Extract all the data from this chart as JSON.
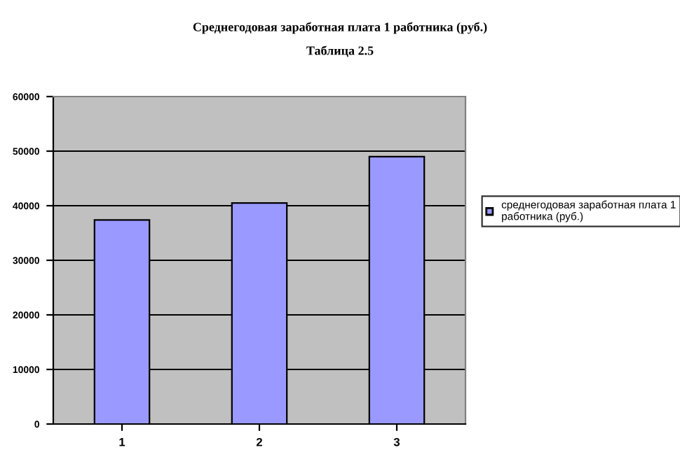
{
  "chart_data": {
    "type": "bar",
    "title": "Среднегодовая заработная плата 1 работника (руб.)",
    "subtitle": "Таблица 2.5",
    "categories": [
      "1",
      "2",
      "3"
    ],
    "series": [
      {
        "name": "среднегодовая заработная плата 1 работника (руб.)",
        "color": "#9999ff",
        "values": [
          37400,
          40500,
          49000
        ]
      }
    ],
    "ylim": [
      0,
      60000
    ],
    "yticks": [
      0,
      10000,
      20000,
      30000,
      40000,
      50000,
      60000
    ],
    "grid": "y",
    "legend": "right"
  }
}
